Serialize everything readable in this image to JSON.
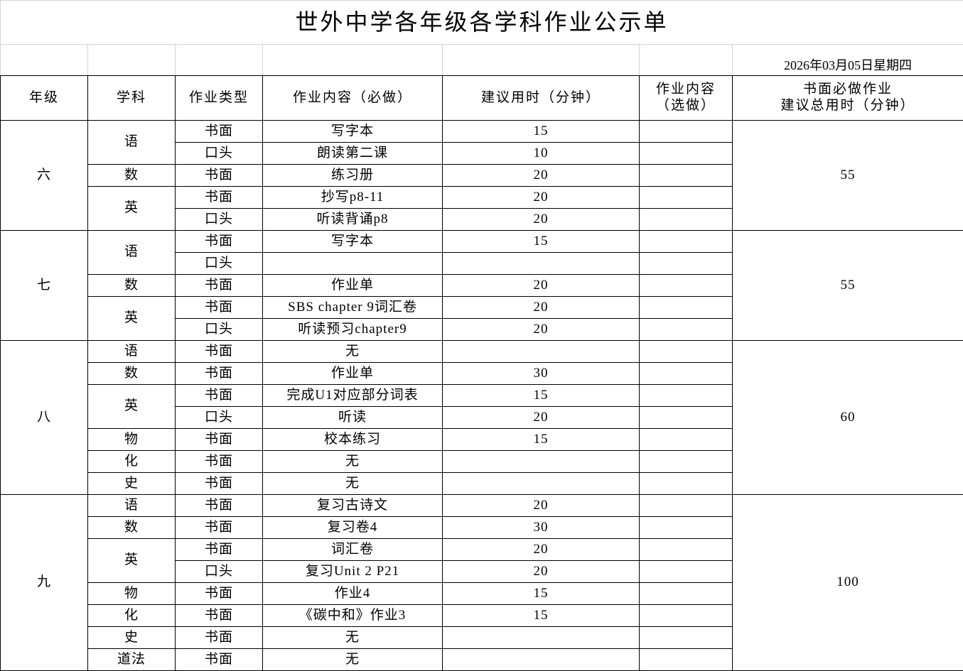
{
  "title": "世外中学各年级各学科作业公示单",
  "date": "2026年03月05日星期四",
  "headers": {
    "grade": "年级",
    "subject": "学科",
    "type": "作业类型",
    "content": "作业内容（必做）",
    "minutes": "建议用时（分钟）",
    "optional_line1": "作业内容",
    "optional_line2": "（选做）",
    "total_line1": "书面必做作业",
    "total_line2": "建议总用时（分钟）"
  },
  "grades": [
    {
      "grade": "六",
      "total": "55",
      "subjects": [
        {
          "subject": "语",
          "items": [
            {
              "type": "书面",
              "content": "写字本",
              "minutes": "15"
            },
            {
              "type": "口头",
              "content": "朗读第二课",
              "minutes": "10"
            }
          ]
        },
        {
          "subject": "数",
          "items": [
            {
              "type": "书面",
              "content": "练习册",
              "minutes": "20"
            }
          ]
        },
        {
          "subject": "英",
          "items": [
            {
              "type": "书面",
              "content": "抄写p8-11",
              "minutes": "20"
            },
            {
              "type": "口头",
              "content": "听读背诵p8",
              "minutes": "20"
            }
          ]
        }
      ]
    },
    {
      "grade": "七",
      "total": "55",
      "subjects": [
        {
          "subject": "语",
          "items": [
            {
              "type": "书面",
              "content": "写字本",
              "minutes": "15"
            },
            {
              "type": "口头",
              "content": "",
              "minutes": ""
            }
          ]
        },
        {
          "subject": "数",
          "items": [
            {
              "type": "书面",
              "content": "作业单",
              "minutes": "20"
            }
          ]
        },
        {
          "subject": "英",
          "items": [
            {
              "type": "书面",
              "content": "SBS chapter 9词汇卷",
              "minutes": "20"
            },
            {
              "type": "口头",
              "content": "听读预习chapter9",
              "minutes": "20"
            }
          ]
        }
      ]
    },
    {
      "grade": "八",
      "total": "60",
      "subjects": [
        {
          "subject": "语",
          "items": [
            {
              "type": "书面",
              "content": "无",
              "minutes": ""
            }
          ]
        },
        {
          "subject": "数",
          "items": [
            {
              "type": "书面",
              "content": "作业单",
              "minutes": "30"
            }
          ]
        },
        {
          "subject": "英",
          "items": [
            {
              "type": "书面",
              "content": "完成U1对应部分词表",
              "minutes": "15"
            },
            {
              "type": "口头",
              "content": "听读",
              "minutes": "20"
            }
          ]
        },
        {
          "subject": "物",
          "items": [
            {
              "type": "书面",
              "content": "校本练习",
              "minutes": "15"
            }
          ]
        },
        {
          "subject": "化",
          "items": [
            {
              "type": "书面",
              "content": "无",
              "minutes": ""
            }
          ]
        },
        {
          "subject": "史",
          "items": [
            {
              "type": "书面",
              "content": "无",
              "minutes": ""
            }
          ]
        }
      ]
    },
    {
      "grade": "九",
      "total": "100",
      "subjects": [
        {
          "subject": "语",
          "items": [
            {
              "type": "书面",
              "content": "复习古诗文",
              "minutes": "20"
            }
          ]
        },
        {
          "subject": "数",
          "items": [
            {
              "type": "书面",
              "content": "复习卷4",
              "minutes": "30"
            }
          ]
        },
        {
          "subject": "英",
          "items": [
            {
              "type": "书面",
              "content": "词汇卷",
              "minutes": "20"
            },
            {
              "type": "口头",
              "content": "复习Unit 2 P21",
              "minutes": "20"
            }
          ]
        },
        {
          "subject": "物",
          "items": [
            {
              "type": "书面",
              "content": "作业4",
              "minutes": "15"
            }
          ]
        },
        {
          "subject": "化",
          "items": [
            {
              "type": "书面",
              "content": "《碳中和》作业3",
              "minutes": "15"
            }
          ]
        },
        {
          "subject": "史",
          "items": [
            {
              "type": "书面",
              "content": "无",
              "minutes": ""
            }
          ]
        },
        {
          "subject": "道法",
          "items": [
            {
              "type": "书面",
              "content": "无",
              "minutes": ""
            }
          ]
        }
      ]
    }
  ]
}
